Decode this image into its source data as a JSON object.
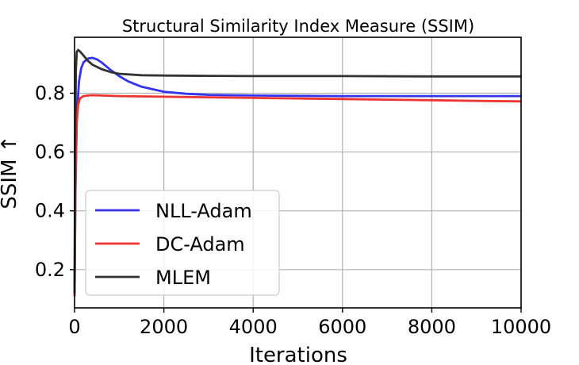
{
  "chart_data": {
    "type": "line",
    "title": "Structural Similarity Index Measure (SSIM)",
    "xlabel": "Iterations",
    "ylabel": "SSIM ↑",
    "xlim": [
      0,
      10000
    ],
    "ylim": [
      0.07,
      0.99
    ],
    "xticks": [
      0,
      2000,
      4000,
      6000,
      8000,
      10000
    ],
    "xtick_labels": [
      "0",
      "2000",
      "4000",
      "6000",
      "8000",
      "10000"
    ],
    "yticks": [
      0.2,
      0.4,
      0.6,
      0.8
    ],
    "ytick_labels": [
      "0.2",
      "0.4",
      "0.6",
      "0.8"
    ],
    "grid": true,
    "legend_position": "lower-left",
    "series": [
      {
        "name": "NLL-Adam",
        "color": "#3333ee",
        "x": [
          0,
          20,
          50,
          100,
          150,
          200,
          300,
          400,
          500,
          600,
          800,
          1000,
          1200,
          1500,
          2000,
          2500,
          3000,
          4000,
          5000,
          6000,
          8000,
          10000
        ],
        "y": [
          0.11,
          0.45,
          0.72,
          0.84,
          0.885,
          0.905,
          0.918,
          0.92,
          0.915,
          0.905,
          0.88,
          0.858,
          0.84,
          0.822,
          0.805,
          0.798,
          0.794,
          0.792,
          0.791,
          0.79,
          0.79,
          0.79
        ]
      },
      {
        "name": "DC-Adam",
        "color": "#ee3333",
        "x": [
          0,
          20,
          50,
          80,
          120,
          200,
          300,
          400,
          600,
          1000,
          2000,
          3000,
          4000,
          5000,
          6000,
          7000,
          8000,
          9000,
          10000
        ],
        "y": [
          0.11,
          0.5,
          0.7,
          0.76,
          0.782,
          0.79,
          0.792,
          0.793,
          0.792,
          0.79,
          0.788,
          0.786,
          0.784,
          0.782,
          0.78,
          0.778,
          0.776,
          0.774,
          0.772
        ]
      },
      {
        "name": "MLEM",
        "color": "#333333",
        "x": [
          0,
          10,
          30,
          50,
          80,
          120,
          200,
          300,
          400,
          600,
          800,
          1000,
          1500,
          2000,
          3000,
          4000,
          6000,
          8000,
          10000
        ],
        "y": [
          0.12,
          0.6,
          0.88,
          0.94,
          0.947,
          0.942,
          0.928,
          0.91,
          0.897,
          0.882,
          0.872,
          0.866,
          0.861,
          0.86,
          0.859,
          0.858,
          0.858,
          0.857,
          0.857
        ]
      }
    ]
  }
}
